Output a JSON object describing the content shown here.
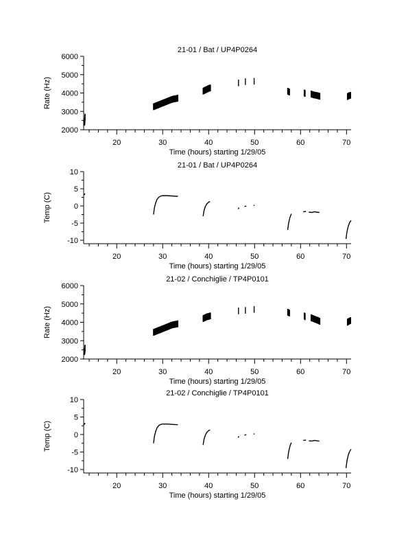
{
  "chart_data": [
    {
      "type": "scatter",
      "title": "21-01 / Bat / UP4P0264",
      "xlabel": "Time (hours) starting 1/29/05",
      "ylabel": "Rate (Hz)",
      "xlim": [
        12.8,
        71
      ],
      "ylim": [
        2000,
        6000
      ],
      "xticks": [
        20,
        30,
        40,
        50,
        60,
        70
      ],
      "yticks": [
        2000,
        3000,
        4000,
        5000,
        6000
      ],
      "series": [
        {
          "segments": [
            {
              "x": [
                13.0,
                13.1
              ],
              "y": [
                2400,
                2700
              ]
            },
            {
              "x": [
                28.0,
                28.5,
                29.0,
                29.5,
                30.0,
                30.5,
                31.0,
                31.5,
                32.0,
                32.5,
                33.0,
                33.3
              ],
              "y": [
                3250,
                3300,
                3350,
                3400,
                3450,
                3500,
                3550,
                3600,
                3650,
                3680,
                3700,
                3720
              ]
            },
            {
              "x": [
                38.8,
                39.2,
                39.6,
                40.0,
                40.4
              ],
              "y": [
                4100,
                4150,
                4200,
                4250,
                4280
              ]
            },
            {
              "x": [
                46.5
              ],
              "y": [
                4550
              ]
            },
            {
              "x": [
                48.0
              ],
              "y": [
                4620
              ]
            },
            {
              "x": [
                49.9
              ],
              "y": [
                4640
              ]
            },
            {
              "x": [
                57.2,
                57.6
              ],
              "y": [
                4100,
                4050
              ]
            },
            {
              "x": [
                60.8,
                61.0
              ],
              "y": [
                4000,
                3980
              ]
            },
            {
              "x": [
                62.3,
                62.8,
                63.3,
                63.8,
                64.2
              ],
              "y": [
                3950,
                3900,
                3880,
                3850,
                3820
              ]
            },
            {
              "x": [
                70.2,
                70.5,
                70.9
              ],
              "y": [
                3800,
                3850,
                3880
              ]
            }
          ]
        }
      ]
    },
    {
      "type": "line",
      "title": "21-01 / Bat / UP4P0264",
      "xlabel": "Time (hours) starting 1/29/05",
      "ylabel": "Temp (C)",
      "xlim": [
        12.8,
        71
      ],
      "ylim": [
        -11,
        10
      ],
      "xticks": [
        20,
        30,
        40,
        50,
        60,
        70
      ],
      "yticks": [
        -10,
        -5,
        0,
        5,
        10
      ],
      "series": [
        {
          "segments": [
            {
              "x": [
                12.9,
                13.1
              ],
              "y": [
                3.2,
                3.6
              ]
            },
            {
              "x": [
                28.0,
                28.2,
                28.5,
                28.8,
                29.2,
                29.6,
                30.0,
                31.0,
                32.0,
                33.3
              ],
              "y": [
                -2.5,
                -0.5,
                1.0,
                2.0,
                2.6,
                2.9,
                3.0,
                3.0,
                2.9,
                2.8
              ]
            },
            {
              "x": [
                38.8,
                39.0,
                39.3,
                39.6,
                40.0,
                40.3
              ],
              "y": [
                -3.0,
                -1.3,
                -0.1,
                0.6,
                1.1,
                1.3
              ]
            },
            {
              "x": [
                46.4,
                46.6
              ],
              "y": [
                -0.9,
                -0.5
              ]
            },
            {
              "x": [
                47.8,
                48.2
              ],
              "y": [
                -0.2,
                0.0
              ]
            },
            {
              "x": [
                49.8,
                50.0
              ],
              "y": [
                0.1,
                0.2
              ]
            },
            {
              "x": [
                57.2,
                57.4,
                57.7,
                58.0
              ],
              "y": [
                -7.0,
                -5.0,
                -3.3,
                -2.3
              ]
            },
            {
              "x": [
                60.6,
                61.2
              ],
              "y": [
                -1.7,
                -1.6
              ]
            },
            {
              "x": [
                61.8,
                62.4,
                63.0,
                63.5,
                64.1
              ],
              "y": [
                -1.8,
                -1.9,
                -1.7,
                -1.8,
                -1.9
              ]
            },
            {
              "x": [
                69.9,
                70.1,
                70.4,
                70.7,
                71.0
              ],
              "y": [
                -9.6,
                -7.5,
                -5.8,
                -4.8,
                -4.2
              ]
            }
          ]
        }
      ]
    },
    {
      "type": "scatter",
      "title": "21-02 / Conchiglie / TP4P0101",
      "xlabel": "Time (hours) starting 1/29/05",
      "ylabel": "Rate (Hz)",
      "xlim": [
        12.8,
        71
      ],
      "ylim": [
        2000,
        6000
      ],
      "xticks": [
        20,
        30,
        40,
        50,
        60,
        70
      ],
      "yticks": [
        2000,
        3000,
        4000,
        5000,
        6000
      ],
      "series": [
        {
          "segments": [
            {
              "x": [
                13.0,
                13.1
              ],
              "y": [
                2400,
                2600
              ]
            },
            {
              "x": [
                28.0,
                28.5,
                29.0,
                29.5,
                30.0,
                30.5,
                31.0,
                31.5,
                32.0,
                32.5,
                33.0,
                33.3
              ],
              "y": [
                3450,
                3500,
                3550,
                3600,
                3650,
                3700,
                3750,
                3800,
                3850,
                3880,
                3900,
                3920
              ]
            },
            {
              "x": [
                38.8,
                39.2,
                39.6,
                40.0,
                40.4
              ],
              "y": [
                4200,
                4250,
                4300,
                4320,
                4350
              ]
            },
            {
              "x": [
                46.5
              ],
              "y": [
                4620
              ]
            },
            {
              "x": [
                48.0
              ],
              "y": [
                4650
              ]
            },
            {
              "x": [
                49.9
              ],
              "y": [
                4700
              ]
            },
            {
              "x": [
                57.2,
                57.6
              ],
              "y": [
                4550,
                4500
              ]
            },
            {
              "x": [
                60.8,
                61.0
              ],
              "y": [
                4350,
                4300
              ]
            },
            {
              "x": [
                62.3,
                62.8,
                63.3,
                63.8,
                64.2
              ],
              "y": [
                4250,
                4200,
                4150,
                4100,
                4050
              ]
            },
            {
              "x": [
                70.2,
                70.5,
                70.9
              ],
              "y": [
                4000,
                4050,
                4100
              ]
            }
          ]
        }
      ]
    },
    {
      "type": "line",
      "title": "21-02 / Conchiglie / TP4P0101",
      "xlabel": "Time (hours) starting 1/29/05",
      "ylabel": "Temp (C)",
      "xlim": [
        12.8,
        71
      ],
      "ylim": [
        -11,
        10
      ],
      "xticks": [
        20,
        30,
        40,
        50,
        60,
        70
      ],
      "yticks": [
        -10,
        -5,
        0,
        5,
        10
      ],
      "series": [
        {
          "segments": [
            {
              "x": [
                12.9,
                13.1
              ],
              "y": [
                2.8,
                3.3
              ]
            },
            {
              "x": [
                28.0,
                28.2,
                28.5,
                28.8,
                29.2,
                29.6,
                30.0,
                31.0,
                32.0,
                33.3
              ],
              "y": [
                -2.5,
                -0.5,
                1.0,
                2.0,
                2.6,
                2.9,
                3.0,
                3.0,
                2.9,
                2.8
              ]
            },
            {
              "x": [
                38.8,
                39.0,
                39.3,
                39.6,
                40.0,
                40.3
              ],
              "y": [
                -3.0,
                -1.3,
                -0.1,
                0.6,
                1.1,
                1.3
              ]
            },
            {
              "x": [
                46.4,
                46.6
              ],
              "y": [
                -0.9,
                -0.5
              ]
            },
            {
              "x": [
                47.8,
                48.2
              ],
              "y": [
                -0.2,
                0.0
              ]
            },
            {
              "x": [
                49.8,
                50.0
              ],
              "y": [
                0.1,
                0.2
              ]
            },
            {
              "x": [
                57.2,
                57.4,
                57.7,
                58.0
              ],
              "y": [
                -7.0,
                -5.0,
                -3.3,
                -2.3
              ]
            },
            {
              "x": [
                60.6,
                61.2
              ],
              "y": [
                -1.7,
                -1.6
              ]
            },
            {
              "x": [
                61.8,
                62.4,
                63.0,
                63.5,
                64.1
              ],
              "y": [
                -1.8,
                -1.9,
                -1.7,
                -1.8,
                -1.9
              ]
            },
            {
              "x": [
                69.9,
                70.1,
                70.4,
                70.7,
                71.0
              ],
              "y": [
                -9.6,
                -7.5,
                -5.8,
                -4.8,
                -4.2
              ]
            }
          ]
        }
      ]
    }
  ]
}
